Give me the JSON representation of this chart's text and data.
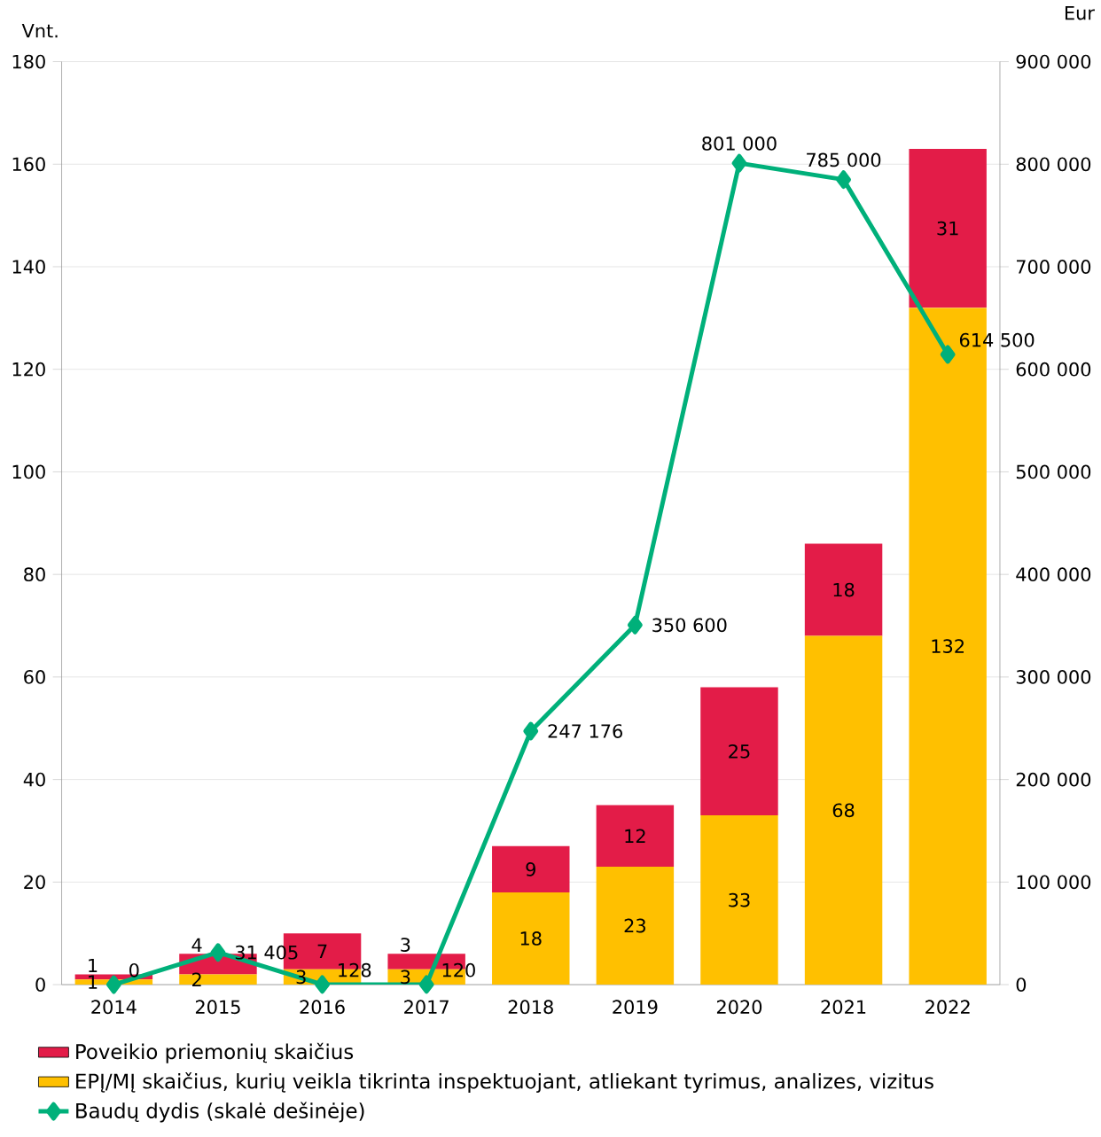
{
  "chart_data": {
    "type": "bar",
    "stacked": true,
    "ylabel": "Vnt.",
    "y2label": "Eur",
    "categories": [
      "2014",
      "2015",
      "2016",
      "2017",
      "2018",
      "2019",
      "2020",
      "2021",
      "2022"
    ],
    "series": [
      {
        "name": "EPĮ/MĮ skaičius, kurių veikla tikrinta inspektuojant, atliekant tyrimus, analizes, vizitus",
        "color": "#ffc000",
        "values": [
          1,
          2,
          3,
          3,
          18,
          23,
          33,
          68,
          132
        ]
      },
      {
        "name": "Poveikio priemonių skaičius",
        "color": "#e31c48",
        "values": [
          1,
          4,
          7,
          3,
          9,
          12,
          25,
          18,
          31
        ]
      },
      {
        "name": "Baudų dydis (skalė dešinėje)",
        "type": "line",
        "axis": "y2",
        "color": "#00b07a",
        "values": [
          0,
          31405,
          128,
          120,
          247176,
          350600,
          801000,
          785000,
          614500
        ]
      }
    ],
    "ylim": [
      0,
      180
    ],
    "yticks": [
      0,
      20,
      40,
      60,
      80,
      100,
      120,
      140,
      160,
      180
    ],
    "y2lim": [
      0,
      900000
    ],
    "y2ticks": [
      0,
      {
        "value": 100000,
        "label": "100 000"
      },
      {
        "value": 200000,
        "label": "200 000"
      },
      {
        "value": 300000,
        "label": "300 000"
      },
      {
        "value": 400000,
        "label": "400 000"
      },
      {
        "value": 500000,
        "label": "500 000"
      },
      {
        "value": 600000,
        "label": "600 000"
      },
      {
        "value": 700000,
        "label": "700 000"
      },
      {
        "value": 800000,
        "label": "800 000"
      },
      {
        "value": 900000,
        "label": "900 000"
      }
    ],
    "grid": "y",
    "legend": "bottom",
    "marker": "diamond",
    "data_labels": true
  }
}
